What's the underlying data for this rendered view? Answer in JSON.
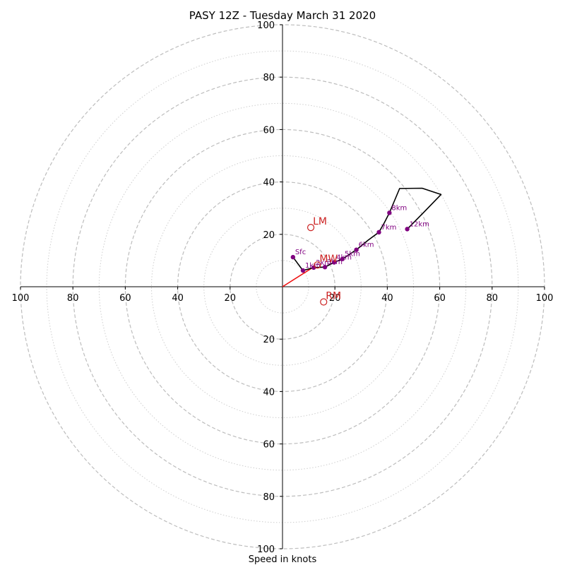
{
  "chart_data": {
    "type": "line",
    "title": "PASY 12Z - Tuesday March 31 2020",
    "xlabel": "Speed in knots",
    "ylabel": "",
    "xlim": [
      -100,
      100
    ],
    "ylim": [
      -100,
      100
    ],
    "grid": true,
    "ring_major": [
      20,
      40,
      60,
      80,
      100
    ],
    "ring_minor": [
      10,
      30,
      50,
      70,
      90
    ],
    "x_ticks": [
      {
        "value": -100,
        "label": "100"
      },
      {
        "value": -80,
        "label": "80"
      },
      {
        "value": -60,
        "label": "60"
      },
      {
        "value": -40,
        "label": "40"
      },
      {
        "value": -20,
        "label": "20"
      },
      {
        "value": 20,
        "label": "20"
      },
      {
        "value": 40,
        "label": "40"
      },
      {
        "value": 60,
        "label": "60"
      },
      {
        "value": 80,
        "label": "80"
      },
      {
        "value": 100,
        "label": "100"
      }
    ],
    "y_ticks": [
      {
        "value": 100,
        "label": "100"
      },
      {
        "value": 80,
        "label": "80"
      },
      {
        "value": 60,
        "label": "60"
      },
      {
        "value": 40,
        "label": "40"
      },
      {
        "value": 20,
        "label": "20"
      },
      {
        "value": -20,
        "label": "20"
      },
      {
        "value": -40,
        "label": "40"
      },
      {
        "value": -60,
        "label": "60"
      },
      {
        "value": -80,
        "label": "80"
      },
      {
        "value": -100,
        "label": "100"
      }
    ],
    "hodograph": [
      [
        4,
        11.3
      ],
      [
        7.8,
        6.2
      ],
      [
        11.9,
        7.3
      ],
      [
        16.2,
        7.5
      ],
      [
        19.7,
        9.3
      ],
      [
        22.9,
        10.6
      ],
      [
        28.2,
        14.1
      ],
      [
        32.7,
        17.8
      ],
      [
        36.8,
        20.8
      ],
      [
        38.8,
        24.3
      ],
      [
        40.8,
        28.2
      ],
      [
        44.7,
        37.5
      ],
      [
        53.3,
        37.6
      ],
      [
        60.5,
        35.2
      ],
      [
        54,
        28.5
      ],
      [
        47.6,
        22
      ]
    ],
    "height_points": [
      {
        "label": "Sfc",
        "x": 4,
        "y": 11.3
      },
      {
        "label": "1km",
        "x": 7.8,
        "y": 6.2
      },
      {
        "label": "2km",
        "x": 11.9,
        "y": 7.3
      },
      {
        "label": "3km",
        "x": 16.2,
        "y": 7.5
      },
      {
        "label": "4km",
        "x": 19.7,
        "y": 9.3
      },
      {
        "label": "5km",
        "x": 22.9,
        "y": 10.6
      },
      {
        "label": "6km",
        "x": 28.2,
        "y": 14.1
      },
      {
        "label": "7km",
        "x": 36.8,
        "y": 20.8
      },
      {
        "label": "8km",
        "x": 40.8,
        "y": 28.2
      },
      {
        "label": "12km",
        "x": 47.6,
        "y": 22
      }
    ],
    "storm_points": [
      {
        "label": "LM",
        "x": 10.8,
        "y": 22.6
      },
      {
        "label": "RM",
        "x": 15.7,
        "y": -5.8
      },
      {
        "label": "MW",
        "x": 13.3,
        "y": 8.3
      }
    ],
    "shear_vector": {
      "from": [
        0,
        0
      ],
      "to": [
        12.6,
        8
      ]
    },
    "colors": {
      "ring": "#bdbdbd",
      "axis": "#000000",
      "hodograph": "#000000",
      "height_marker": "#800080",
      "storm_marker": "#cc2222",
      "shear_vector": "#ee1111"
    }
  }
}
